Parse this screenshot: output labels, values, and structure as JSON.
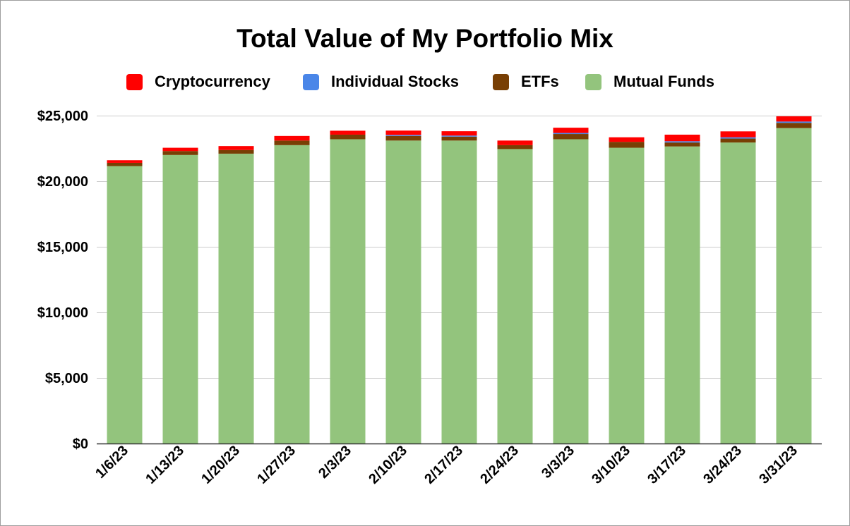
{
  "chart_data": {
    "type": "bar",
    "stacked": true,
    "title": "Total Value of My Portfolio Mix",
    "xlabel": "",
    "ylabel": "",
    "ylim": [
      0,
      25000
    ],
    "yticks": [
      0,
      5000,
      10000,
      15000,
      20000,
      25000
    ],
    "ytick_labels": [
      "$0",
      "$5,000",
      "$10,000",
      "$15,000",
      "$20,000",
      "$25,000"
    ],
    "grid": true,
    "legend_position": "top",
    "categories": [
      "1/6/23",
      "1/13/23",
      "1/20/23",
      "1/27/23",
      "2/3/23",
      "2/10/23",
      "2/17/23",
      "2/24/23",
      "3/3/23",
      "3/10/23",
      "3/17/23",
      "3/24/23",
      "3/31/23"
    ],
    "series": [
      {
        "name": "Mutual Funds",
        "color": "#93c47d",
        "values": [
          21150,
          22000,
          22100,
          22750,
          23200,
          23100,
          23100,
          22450,
          23200,
          22550,
          22650,
          22950,
          24050
        ]
      },
      {
        "name": "ETFs",
        "color": "#783f04",
        "values": [
          250,
          300,
          280,
          350,
          350,
          350,
          300,
          300,
          400,
          450,
          300,
          300,
          400
        ]
      },
      {
        "name": "Individual Stocks",
        "color": "#4a86e8",
        "values": [
          0,
          0,
          0,
          0,
          0,
          80,
          80,
          0,
          80,
          0,
          100,
          100,
          100
        ]
      },
      {
        "name": "Cryptocurrency",
        "color": "#ff0000",
        "values": [
          200,
          250,
          300,
          350,
          300,
          330,
          330,
          350,
          400,
          350,
          500,
          450,
          400
        ]
      }
    ],
    "legend": [
      {
        "name": "Cryptocurrency",
        "color": "#ff0000"
      },
      {
        "name": "Individual Stocks",
        "color": "#4a86e8"
      },
      {
        "name": "ETFs",
        "color": "#783f04"
      },
      {
        "name": "Mutual Funds",
        "color": "#93c47d"
      }
    ]
  }
}
